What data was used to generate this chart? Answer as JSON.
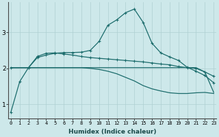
{
  "xlabel": "Humidex (Indice chaleur)",
  "x_ticks": [
    0,
    1,
    2,
    3,
    4,
    5,
    6,
    7,
    8,
    9,
    10,
    11,
    12,
    13,
    14,
    15,
    16,
    17,
    18,
    19,
    20,
    21,
    22,
    23
  ],
  "x_tick_labels": [
    "0",
    "1",
    "2",
    "3",
    "4",
    "5",
    "6",
    "7",
    "8",
    "9",
    "10",
    "11",
    "12",
    "13",
    "14",
    "15",
    "16",
    "17",
    "18",
    "19",
    "20",
    "21",
    "22",
    "23"
  ],
  "ylim": [
    0.6,
    3.85
  ],
  "xlim": [
    -0.3,
    23.3
  ],
  "yticks": [
    1,
    2,
    3
  ],
  "background_color": "#cde8ea",
  "grid_color": "#aecfd1",
  "line_color": "#1a6b6b",
  "line1_x": [
    0,
    1,
    2,
    3,
    4,
    5,
    6,
    7,
    8,
    9,
    10,
    11,
    12,
    13,
    14,
    15,
    16,
    17,
    18,
    19,
    20,
    21,
    22,
    23
  ],
  "line1_y": [
    0.78,
    1.63,
    2.02,
    2.3,
    2.37,
    2.42,
    2.44,
    2.44,
    2.45,
    2.5,
    2.75,
    3.2,
    3.35,
    3.55,
    3.65,
    3.28,
    2.7,
    2.43,
    2.32,
    2.22,
    2.03,
    1.92,
    1.8,
    1.6
  ],
  "line2_x": [
    0,
    2,
    3,
    4,
    5,
    6,
    7,
    8,
    9,
    10,
    11,
    12,
    13,
    14,
    15,
    16,
    17,
    18,
    19,
    20,
    21,
    22,
    23
  ],
  "line2_y": [
    2.02,
    2.02,
    2.33,
    2.42,
    2.43,
    2.4,
    2.37,
    2.33,
    2.3,
    2.28,
    2.26,
    2.24,
    2.22,
    2.2,
    2.18,
    2.15,
    2.12,
    2.1,
    2.05,
    2.02,
    2.0,
    1.9,
    1.78
  ],
  "line3_x": [
    0,
    1,
    2,
    3,
    4,
    5,
    6,
    7,
    8,
    9,
    10,
    11,
    12,
    13,
    14,
    15,
    16,
    17,
    18,
    19,
    20,
    21,
    22,
    23
  ],
  "line3_y": [
    2.02,
    2.02,
    2.02,
    2.02,
    2.02,
    2.02,
    2.02,
    2.02,
    2.02,
    2.02,
    2.02,
    2.02,
    2.02,
    2.02,
    2.02,
    2.02,
    2.02,
    2.02,
    2.02,
    2.02,
    2.02,
    2.02,
    1.9,
    1.33
  ],
  "line4_x": [
    0,
    1,
    2,
    3,
    4,
    5,
    6,
    7,
    8,
    9,
    10,
    11,
    12,
    13,
    14,
    15,
    16,
    17,
    18,
    19,
    20,
    21,
    22,
    23
  ],
  "line4_y": [
    2.02,
    2.02,
    2.02,
    2.02,
    2.02,
    2.02,
    2.02,
    2.02,
    2.02,
    2.0,
    1.97,
    1.92,
    1.85,
    1.75,
    1.65,
    1.52,
    1.43,
    1.37,
    1.32,
    1.3,
    1.3,
    1.32,
    1.33,
    1.3
  ]
}
